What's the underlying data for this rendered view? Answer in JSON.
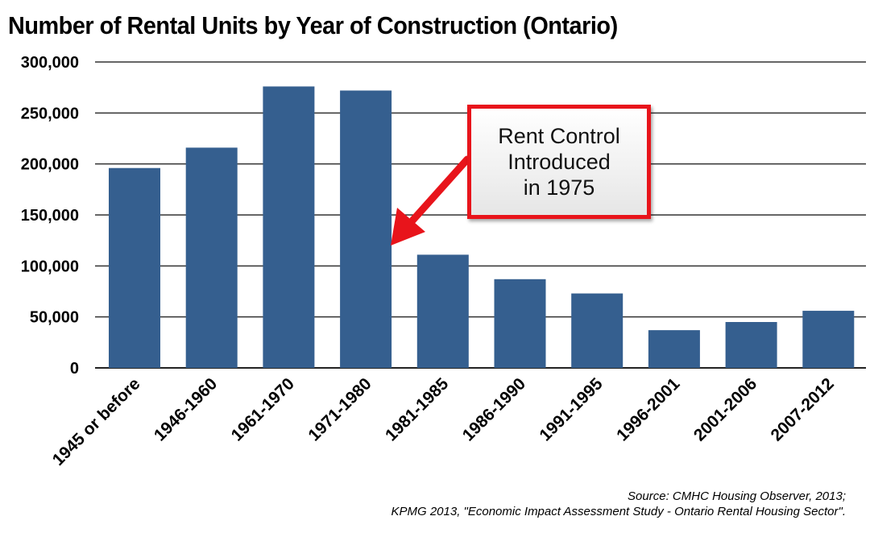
{
  "chart_data": {
    "type": "bar",
    "title": "Number of Rental Units by Year of Construction (Ontario)",
    "xlabel": "",
    "ylabel": "",
    "ylim": [
      0,
      300000
    ],
    "yticks": [
      0,
      50000,
      100000,
      150000,
      200000,
      250000,
      300000
    ],
    "ytick_labels": [
      "0",
      "50,000",
      "100,000",
      "150,000",
      "200,000",
      "250,000",
      "300,000"
    ],
    "grid": true,
    "categories": [
      "1945 or before",
      "1946-1960",
      "1961-1970",
      "1971-1980",
      "1981-1985",
      "1986-1990",
      "1991-1995",
      "1996-2001",
      "2001-2006",
      "2007-2012"
    ],
    "values": [
      196000,
      216000,
      276000,
      272000,
      111000,
      87000,
      73000,
      37000,
      45000,
      56000
    ],
    "bar_color": "#355f8f",
    "annotation": {
      "lines": [
        "Rent Control",
        "Introduced",
        "in 1975"
      ],
      "points_to": "1971-1980",
      "border_color": "#e8141b"
    },
    "source_lines": [
      "Source: CMHC Housing Observer, 2013;",
      "KPMG 2013, \"Economic Impact Assessment Study - Ontario Rental Housing Sector\"."
    ]
  }
}
